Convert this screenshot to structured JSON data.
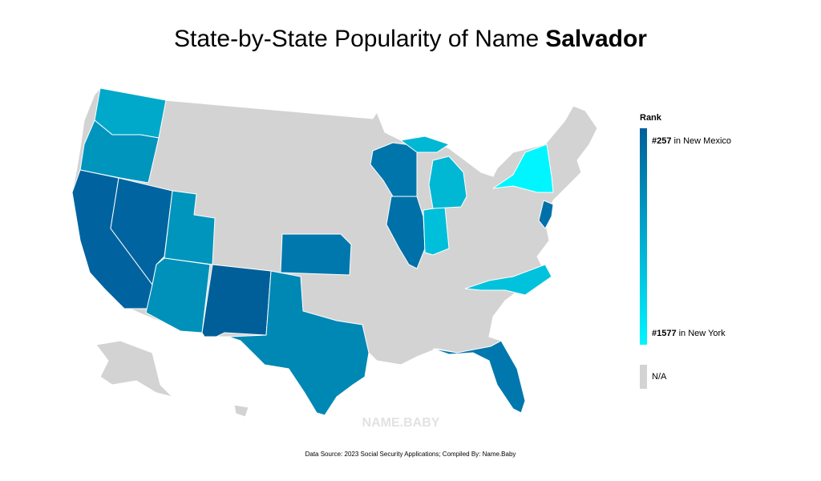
{
  "title": {
    "prefix": "State-by-State Popularity of Name",
    "name": "Salvador"
  },
  "legend": {
    "title": "Rank",
    "high": {
      "rank": "#257",
      "state": "in New Mexico",
      "color": "#005f99"
    },
    "low": {
      "rank": "#1577",
      "state": "in New York",
      "color": "#00f5ff"
    },
    "na": {
      "label": "N/A",
      "color": "#d3d3d3"
    }
  },
  "state_colors": [
    "#00a8c9",
    "#0095bd",
    "#0063a0",
    "#0064a0",
    "#0095bd",
    "#0091ba",
    "#005f99",
    "#0088b5",
    "#0078ad",
    "#0075ab",
    "#0070a8",
    "#00bfda",
    "#00b7d4",
    "#00b7d4",
    "#00f5ff",
    "#0070aa",
    "#00c2dc",
    "#0077ad"
  ],
  "watermark": "NAME.BABY",
  "source": "Data Source: 2023 Social Security Applications; Compiled By: Name.Baby"
}
